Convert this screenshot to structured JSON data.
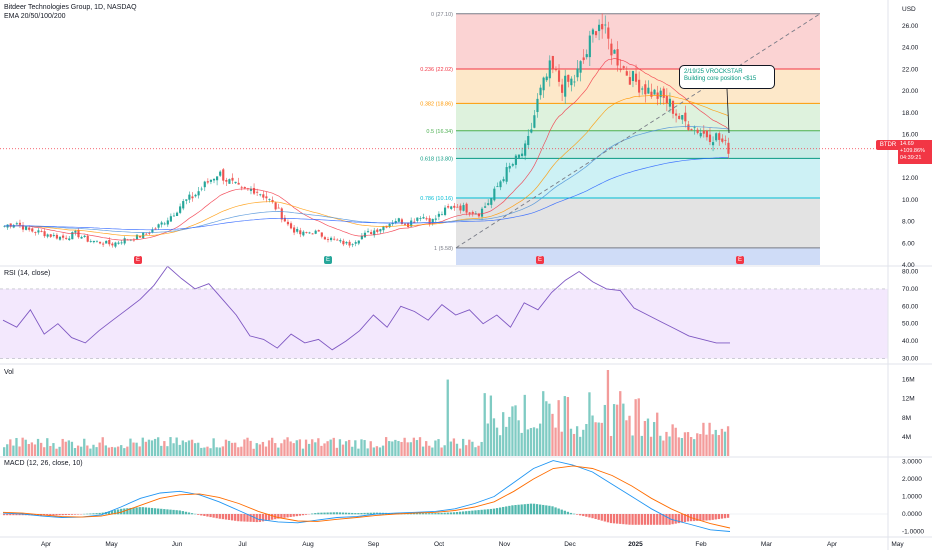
{
  "header": {
    "symbol_line": "Bitdeer Technologies Group, 1D, NASDAQ",
    "indicator_line": "EMA 20/50/100/200"
  },
  "currency": "USD",
  "colors": {
    "up": "#26a69a",
    "down": "#ef5350",
    "ema20": "#f23645",
    "ema50": "#ff9800",
    "ema100": "#4a8fd8",
    "ema200": "#2962ff",
    "rsi": "#7e57c2",
    "macd": "#2196f3",
    "signal": "#ff6d00"
  },
  "price_tag": {
    "symbol": "BTDR",
    "last": "14.69",
    "change": "+109.86%",
    "countdown": "04:39:21"
  },
  "annotation": {
    "line1": "2/19/25 VROCKSTAR",
    "line2": "Building core position <$15"
  },
  "earnings_markers": [
    {
      "label": "E",
      "color": "#f23645"
    },
    {
      "label": "E",
      "color": "#26a69a"
    },
    {
      "label": "E",
      "color": "#f23645"
    },
    {
      "label": "E",
      "color": "#f23645"
    }
  ],
  "panes": {
    "rsi_label": "RSI (14, close)",
    "vol_label": "Vol",
    "macd_label": "MACD (12, 26, close, 10)"
  },
  "chart_data": [
    {
      "type": "candlestick",
      "title": "Bitdeer Technologies Group, 1D, NASDAQ",
      "x_ticks": [
        "Apr",
        "May",
        "Jun",
        "Jul",
        "Aug",
        "Sep",
        "Oct",
        "Nov",
        "Dec",
        "2025",
        "Feb",
        "Mar",
        "Apr",
        "May"
      ],
      "y_ticks": [
        "4.00",
        "6.00",
        "8.00",
        "10.00",
        "12.00",
        "14.00",
        "16.00",
        "18.00",
        "20.00",
        "22.00",
        "24.00",
        "26.00"
      ],
      "ylim": [
        4,
        28
      ],
      "fibonacci_levels": [
        {
          "label": "0 (27.10)",
          "value": 27.1,
          "color": "#787b86"
        },
        {
          "label": "0.236 (22.02)",
          "value": 22.02,
          "color": "#f23645"
        },
        {
          "label": "0.382 (18.86)",
          "value": 18.86,
          "color": "#ff9800"
        },
        {
          "label": "0.5 (16.34)",
          "value": 16.34,
          "color": "#4caf50"
        },
        {
          "label": "0.618 (13.80)",
          "value": 13.8,
          "color": "#089981"
        },
        {
          "label": "0.786 (10.16)",
          "value": 10.16,
          "color": "#00bcd4"
        },
        {
          "label": "1 (5.58)",
          "value": 5.58,
          "color": "#787b86"
        }
      ],
      "last_price": 14.69,
      "series": [
        {
          "name": "Close",
          "values": [
            7.6,
            7.9,
            7.2,
            7.0,
            6.7,
            6.5,
            6.9,
            6.3,
            6.1,
            5.9,
            6.3,
            6.5,
            6.9,
            7.6,
            8.5,
            9.7,
            10.4,
            11.5,
            12.5,
            11.6,
            10.8,
            11.0,
            10.3,
            9.1,
            7.5,
            6.8,
            7.1,
            6.6,
            6.2,
            5.9,
            6.6,
            7.1,
            7.6,
            8.2,
            7.8,
            8.6,
            8.0,
            8.9,
            9.5,
            9.1,
            8.8,
            10.1,
            12.2,
            13.5,
            14.8,
            19.4,
            22.1,
            20.5,
            21.0,
            23.3,
            26.6,
            24.2,
            22.3,
            21.0,
            20.2,
            19.6,
            18.9,
            17.3,
            16.8,
            16.0,
            15.8,
            14.69
          ]
        }
      ]
    },
    {
      "type": "line",
      "title": "RSI (14, close)",
      "y_ticks": [
        "30.00",
        "40.00",
        "50.00",
        "60.00",
        "70.00",
        "80.00"
      ],
      "ylim": [
        28,
        82
      ],
      "bands": [
        30,
        70
      ],
      "series": [
        {
          "name": "RSI",
          "values": [
            52,
            48,
            58,
            44,
            50,
            42,
            39,
            46,
            52,
            58,
            64,
            72,
            83,
            76,
            70,
            73,
            64,
            55,
            43,
            41,
            36,
            44,
            39,
            41,
            35,
            40,
            46,
            55,
            48,
            60,
            57,
            52,
            61,
            55,
            58,
            50,
            55,
            48,
            62,
            58,
            68,
            75,
            80,
            74,
            70,
            69,
            59,
            55,
            51,
            47,
            43,
            41,
            39,
            39
          ]
        }
      ]
    },
    {
      "type": "bar",
      "title": "Vol",
      "y_ticks": [
        "4M",
        "8M",
        "12M",
        "16M"
      ],
      "ylim": [
        0,
        18
      ],
      "unit": "M"
    },
    {
      "type": "line",
      "title": "MACD (12, 26, close, 10)",
      "y_ticks": [
        "-1.0000",
        "0.0000",
        "1.0000",
        "2.0000",
        "3.0000"
      ],
      "ylim": [
        -1.2,
        3.2
      ],
      "series": [
        {
          "name": "MACD",
          "values": [
            0.05,
            0.0,
            -0.12,
            -0.2,
            -0.18,
            -0.05,
            0.4,
            0.9,
            1.2,
            1.3,
            1.1,
            0.7,
            0.2,
            -0.3,
            -0.45,
            -0.5,
            -0.35,
            -0.2,
            -0.15,
            0.0,
            0.05,
            0.1,
            0.15,
            0.3,
            0.6,
            1.0,
            1.8,
            2.6,
            3.05,
            2.8,
            2.4,
            1.7,
            1.0,
            0.3,
            -0.3,
            -0.6,
            -0.9,
            -1.0
          ]
        },
        {
          "name": "Signal",
          "values": [
            0.1,
            0.05,
            -0.05,
            -0.15,
            -0.18,
            -0.12,
            0.1,
            0.5,
            0.9,
            1.1,
            1.15,
            0.95,
            0.6,
            0.15,
            -0.2,
            -0.4,
            -0.42,
            -0.3,
            -0.2,
            -0.08,
            0.0,
            0.05,
            0.1,
            0.2,
            0.4,
            0.7,
            1.3,
            2.0,
            2.6,
            2.75,
            2.6,
            2.2,
            1.6,
            0.9,
            0.3,
            -0.2,
            -0.55,
            -0.8
          ]
        }
      ]
    }
  ]
}
